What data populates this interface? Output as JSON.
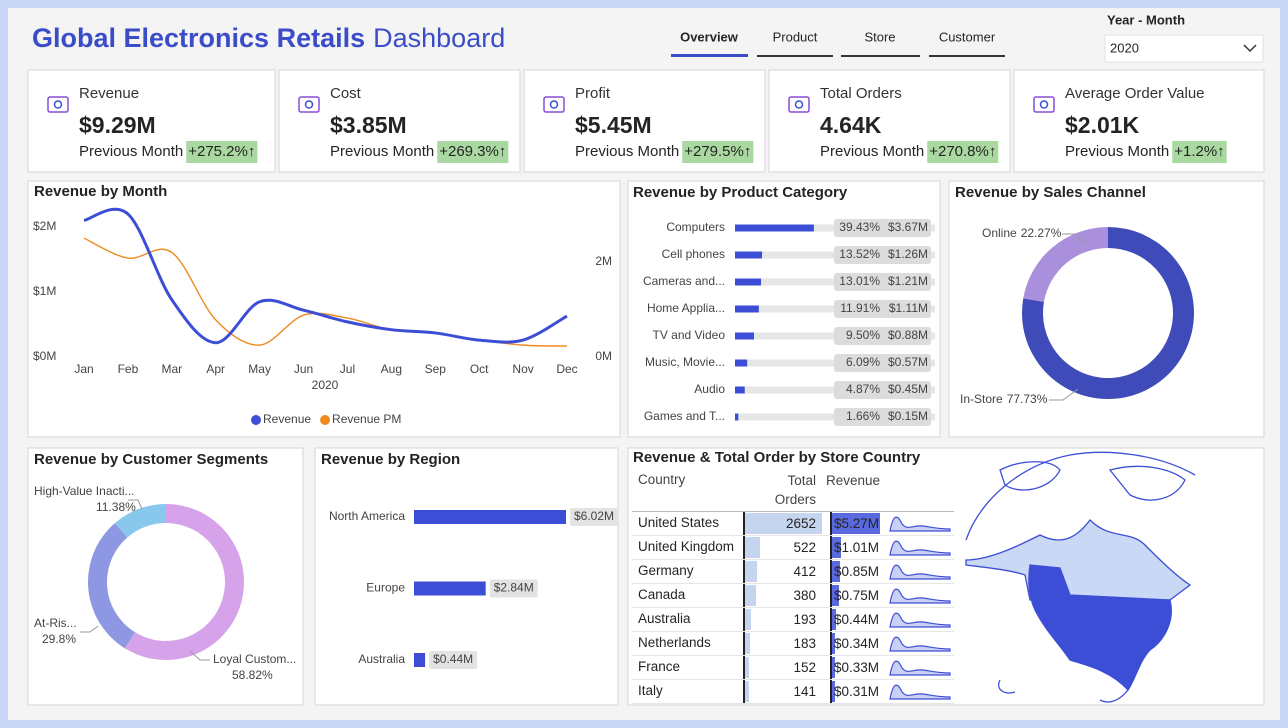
{
  "header": {
    "title": "Global Electronics Retails",
    "subtitle": "Dashboard"
  },
  "tabs": [
    "Overview",
    "Product",
    "Store",
    "Customer"
  ],
  "filter": {
    "label": "Year - Month",
    "value": "2020"
  },
  "kpis": [
    {
      "label": "Revenue",
      "value": "$9.29M",
      "comparison": "Previous Month",
      "change": "+275.2%↑"
    },
    {
      "label": "Cost",
      "value": "$3.85M",
      "comparison": "Previous Month",
      "change": "+269.3%↑"
    },
    {
      "label": "Profit",
      "value": "$5.45M",
      "comparison": "Previous Month",
      "change": "+279.5%↑"
    },
    {
      "label": "Total Orders",
      "value": "4.64K",
      "comparison": "Previous Month",
      "change": "+270.8%↑"
    },
    {
      "label": "Average Order Value",
      "value": "$2.01K",
      "comparison": "Previous Month",
      "change": "+1.2%↑"
    }
  ],
  "chart_data": [
    {
      "type": "line",
      "title": "Revenue by Month",
      "x_label": "2020",
      "categories": [
        "Jan",
        "Feb",
        "Mar",
        "Apr",
        "May",
        "Jun",
        "Jul",
        "Aug",
        "Sep",
        "Oct",
        "Nov",
        "Dec"
      ],
      "series": [
        {
          "name": "Revenue",
          "color": "#3d4ed6",
          "values": [
            2.1,
            2.2,
            0.88,
            0.22,
            0.85,
            0.72,
            0.54,
            0.42,
            0.37,
            0.26,
            0.26,
            0.63
          ]
        },
        {
          "name": "Revenue PM",
          "color": "#f0891f",
          "axis": "y2",
          "values": [
            2.5,
            2.08,
            2.2,
            0.78,
            0.25,
            0.88,
            0.82,
            0.57,
            0.5,
            0.36,
            0.25,
            0.23
          ]
        }
      ],
      "ylim": [
        0,
        2.23
      ],
      "yticks": [
        {
          "value": 0,
          "label": "$0M"
        },
        {
          "value": 1,
          "label": "$1M"
        },
        {
          "value": 2,
          "label": "$2M"
        }
      ],
      "y2lim": [
        0,
        3.05
      ],
      "y2ticks": [
        {
          "value": 0,
          "label": "0M"
        },
        {
          "value": 2,
          "label": "2M"
        }
      ],
      "legend": "bottom"
    },
    {
      "type": "bar",
      "title": "Revenue by Product Category",
      "color": "#3d4ed6",
      "categories": [
        "Computers",
        "Cell phones",
        "Cameras and...",
        "Home Applia...",
        "TV and Video",
        "Music, Movie...",
        "Audio",
        "Games and T..."
      ],
      "values": [
        39.43,
        13.52,
        13.01,
        11.91,
        9.5,
        6.09,
        4.87,
        1.66
      ],
      "value_labels": [
        "39.43%",
        "13.52%",
        "13.01%",
        "11.91%",
        "9.50%",
        "6.09%",
        "4.87%",
        "1.66%"
      ],
      "revenue_labels": [
        "$3.67M",
        "$1.26M",
        "$1.21M",
        "$1.11M",
        "$0.88M",
        "$0.57M",
        "$0.45M",
        "$0.15M"
      ],
      "xlim": [
        0,
        100
      ]
    },
    {
      "type": "pie",
      "title": "Revenue by Sales Channel",
      "categories": [
        "In-Store",
        "Online"
      ],
      "values": [
        77.73,
        22.27
      ],
      "value_labels": [
        "77.73%",
        "22.27%"
      ],
      "colors": [
        "#3f4bb8",
        "#a98fdc"
      ]
    },
    {
      "type": "pie",
      "title": "Revenue by Customer Segments",
      "categories": [
        "Loyal Custom...",
        "At-Ris...",
        "High-Value Inacti..."
      ],
      "values": [
        58.82,
        29.8,
        11.38
      ],
      "value_labels": [
        "58.82%",
        "29.8%",
        "11.38%"
      ],
      "colors": [
        "#d6a2ea",
        "#8e98e2",
        "#88c8ec"
      ]
    },
    {
      "type": "bar",
      "title": "Revenue by Region",
      "color": "#3d4ed6",
      "categories": [
        "North America",
        "Europe",
        "Australia"
      ],
      "values": [
        6.02,
        2.84,
        0.44
      ],
      "value_labels": [
        "$6.02M",
        "$2.84M",
        "$0.44M"
      ],
      "xlim": [
        0,
        6.02
      ]
    }
  ],
  "store_table": {
    "title": "Revenue & Total Order by Store Country",
    "columns": [
      "Country",
      "Total Orders",
      "Revenue"
    ],
    "rows": [
      {
        "country": "United States",
        "orders": 2652,
        "revenue": 5.27,
        "revenue_label": "$5.27M"
      },
      {
        "country": "United Kingdom",
        "orders": 522,
        "revenue": 1.01,
        "revenue_label": "$1.01M"
      },
      {
        "country": "Germany",
        "orders": 412,
        "revenue": 0.85,
        "revenue_label": "$0.85M"
      },
      {
        "country": "Canada",
        "orders": 380,
        "revenue": 0.75,
        "revenue_label": "$0.75M"
      },
      {
        "country": "Australia",
        "orders": 193,
        "revenue": 0.44,
        "revenue_label": "$0.44M"
      },
      {
        "country": "Netherlands",
        "orders": 183,
        "revenue": 0.34,
        "revenue_label": "$0.34M"
      },
      {
        "country": "France",
        "orders": 152,
        "revenue": 0.33,
        "revenue_label": "$0.33M"
      },
      {
        "country": "Italy",
        "orders": 141,
        "revenue": 0.31,
        "revenue_label": "$0.31M"
      }
    ]
  }
}
